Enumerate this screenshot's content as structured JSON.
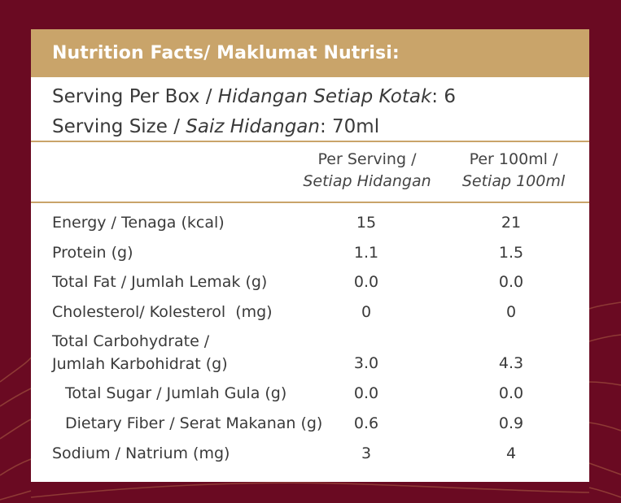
{
  "title": "Nutrition Facts/ Maklumat Nutrisi:",
  "serving_per_box": {
    "label": "Serving Per Box / ",
    "label_italic": "Hidangan Setiap Kotak",
    "value": ": 6"
  },
  "serving_size": {
    "label": "Serving Size / ",
    "label_italic": "Saiz Hidangan",
    "value": ": 70ml"
  },
  "columns": {
    "per_serving": {
      "line1": "Per Serving /",
      "line2": "Setiap Hidangan"
    },
    "per_100ml": {
      "line1": "Per 100ml /",
      "line2": "Setiap 100ml"
    }
  },
  "rows": [
    {
      "label": "Energy / Tenaga (kcal)",
      "per_serving": "15",
      "per_100ml": "21"
    },
    {
      "label": "Protein (g)",
      "per_serving": "1.1",
      "per_100ml": "1.5"
    },
    {
      "label": "Total Fat / Jumlah Lemak (g)",
      "per_serving": "0.0",
      "per_100ml": "0.0"
    },
    {
      "label": "Cholesterol/ Kolesterol  (mg)",
      "per_serving": "0",
      "per_100ml": "0"
    },
    {
      "label": "Total Carbohydrate /",
      "label2": "Jumlah Karbohidrat (g)",
      "per_serving": "3.0",
      "per_100ml": "4.3"
    },
    {
      "label": "Total Sugar / Jumlah Gula (g)",
      "per_serving": "0.0",
      "per_100ml": "0.0"
    },
    {
      "label": "Dietary Fiber / Serat Makanan (g)",
      "per_serving": "0.6",
      "per_100ml": "0.9"
    },
    {
      "label": "Sodium / Natrium (mg)",
      "per_serving": "3",
      "per_100ml": "4"
    }
  ],
  "colors": {
    "background": "#6a0a22",
    "accent": "#c9a46a",
    "text": "#3a3a3a"
  }
}
